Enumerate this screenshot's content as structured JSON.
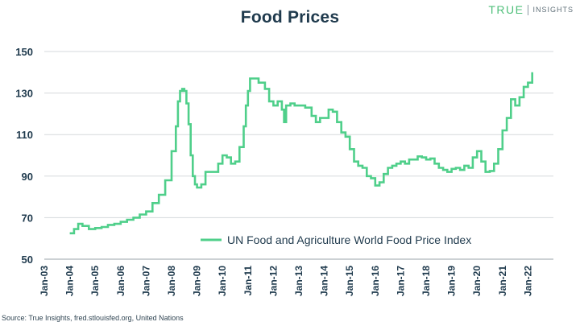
{
  "header": {
    "title": "Food Prices",
    "brand_main": "TRUE",
    "brand_sub": "INSIGHTS"
  },
  "footer": {
    "source": "Source: True Insights, fred.stlouisfed.org, United Nations"
  },
  "colors": {
    "line": "#4fcf8a",
    "title": "#1f3a4d",
    "grid": "#d5d9dc",
    "brand": "#4fbf7a"
  },
  "chart_data": {
    "type": "line",
    "title": "Food Prices",
    "xlabel": "",
    "ylabel": "",
    "ylim": [
      50,
      150
    ],
    "yticks": [
      50,
      70,
      90,
      110,
      130,
      150
    ],
    "xlim": [
      2003,
      2023
    ],
    "xticks": [
      "Jan-03",
      "Jan-04",
      "Jan-05",
      "Jan-06",
      "Jan-07",
      "Jan-08",
      "Jan-09",
      "Jan-10",
      "Jan-11",
      "Jan-12",
      "Jan-13",
      "Jan-14",
      "Jan-15",
      "Jan-16",
      "Jan-17",
      "Jan-18",
      "Jan-19",
      "Jan-20",
      "Jan-21",
      "Jan-22"
    ],
    "grid": true,
    "legend_position": "center-right",
    "series": [
      {
        "name": "UN Food and Agriculture World Food Price Index",
        "points": [
          [
            "2004-01",
            62.5
          ],
          [
            "2004-03",
            64.5
          ],
          [
            "2004-05",
            67
          ],
          [
            "2004-07",
            66
          ],
          [
            "2004-10",
            64.5
          ],
          [
            "2005-01",
            65
          ],
          [
            "2005-04",
            65.5
          ],
          [
            "2005-07",
            66.5
          ],
          [
            "2005-10",
            67
          ],
          [
            "2006-01",
            68
          ],
          [
            "2006-04",
            69
          ],
          [
            "2006-07",
            70
          ],
          [
            "2006-10",
            71.5
          ],
          [
            "2007-01",
            73
          ],
          [
            "2007-04",
            77
          ],
          [
            "2007-07",
            81
          ],
          [
            "2007-10",
            88
          ],
          [
            "2008-01",
            102
          ],
          [
            "2008-03",
            114
          ],
          [
            "2008-04",
            126
          ],
          [
            "2008-05",
            131
          ],
          [
            "2008-06",
            132
          ],
          [
            "2008-07",
            131
          ],
          [
            "2008-08",
            125
          ],
          [
            "2008-09",
            115
          ],
          [
            "2008-10",
            100
          ],
          [
            "2008-11",
            90
          ],
          [
            "2008-12",
            86
          ],
          [
            "2009-01",
            84.5
          ],
          [
            "2009-03",
            86
          ],
          [
            "2009-05",
            92
          ],
          [
            "2009-08",
            92
          ],
          [
            "2009-11",
            96
          ],
          [
            "2010-01",
            100
          ],
          [
            "2010-03",
            99
          ],
          [
            "2010-05",
            96
          ],
          [
            "2010-07",
            97
          ],
          [
            "2010-09",
            104
          ],
          [
            "2010-11",
            114
          ],
          [
            "2010-12",
            124
          ],
          [
            "2011-01",
            131
          ],
          [
            "2011-02",
            137
          ],
          [
            "2011-04",
            137
          ],
          [
            "2011-06",
            135
          ],
          [
            "2011-09",
            132
          ],
          [
            "2011-11",
            126
          ],
          [
            "2012-01",
            124
          ],
          [
            "2012-03",
            126
          ],
          [
            "2012-05",
            122
          ],
          [
            "2012-06",
            116
          ],
          [
            "2012-07",
            124
          ],
          [
            "2012-09",
            125
          ],
          [
            "2012-11",
            124
          ],
          [
            "2013-01",
            124
          ],
          [
            "2013-04",
            123
          ],
          [
            "2013-07",
            119
          ],
          [
            "2013-09",
            116
          ],
          [
            "2013-11",
            118
          ],
          [
            "2014-01",
            118
          ],
          [
            "2014-03",
            122
          ],
          [
            "2014-05",
            121
          ],
          [
            "2014-07",
            116
          ],
          [
            "2014-09",
            111
          ],
          [
            "2014-11",
            109
          ],
          [
            "2015-01",
            103
          ],
          [
            "2015-03",
            97
          ],
          [
            "2015-05",
            95
          ],
          [
            "2015-07",
            94
          ],
          [
            "2015-09",
            90
          ],
          [
            "2015-11",
            89
          ],
          [
            "2016-01",
            85.5
          ],
          [
            "2016-03",
            87
          ],
          [
            "2016-05",
            91
          ],
          [
            "2016-07",
            94
          ],
          [
            "2016-09",
            95
          ],
          [
            "2016-11",
            96
          ],
          [
            "2017-01",
            97
          ],
          [
            "2017-03",
            96
          ],
          [
            "2017-05",
            98
          ],
          [
            "2017-07",
            98
          ],
          [
            "2017-09",
            99.5
          ],
          [
            "2017-11",
            99
          ],
          [
            "2018-01",
            98
          ],
          [
            "2018-03",
            98.5
          ],
          [
            "2018-05",
            96
          ],
          [
            "2018-07",
            94
          ],
          [
            "2018-09",
            93
          ],
          [
            "2018-11",
            92
          ],
          [
            "2019-01",
            93.5
          ],
          [
            "2019-03",
            94
          ],
          [
            "2019-05",
            93
          ],
          [
            "2019-07",
            95
          ],
          [
            "2019-09",
            94
          ],
          [
            "2019-11",
            99
          ],
          [
            "2020-01",
            102
          ],
          [
            "2020-03",
            97
          ],
          [
            "2020-05",
            92
          ],
          [
            "2020-07",
            92.5
          ],
          [
            "2020-09",
            96
          ],
          [
            "2020-11",
            103
          ],
          [
            "2021-01",
            112
          ],
          [
            "2021-03",
            118
          ],
          [
            "2021-05",
            127
          ],
          [
            "2021-07",
            124
          ],
          [
            "2021-09",
            128
          ],
          [
            "2021-11",
            133
          ],
          [
            "2022-01",
            135
          ],
          [
            "2022-02",
            135
          ],
          [
            "2022-03",
            140
          ]
        ]
      }
    ]
  }
}
